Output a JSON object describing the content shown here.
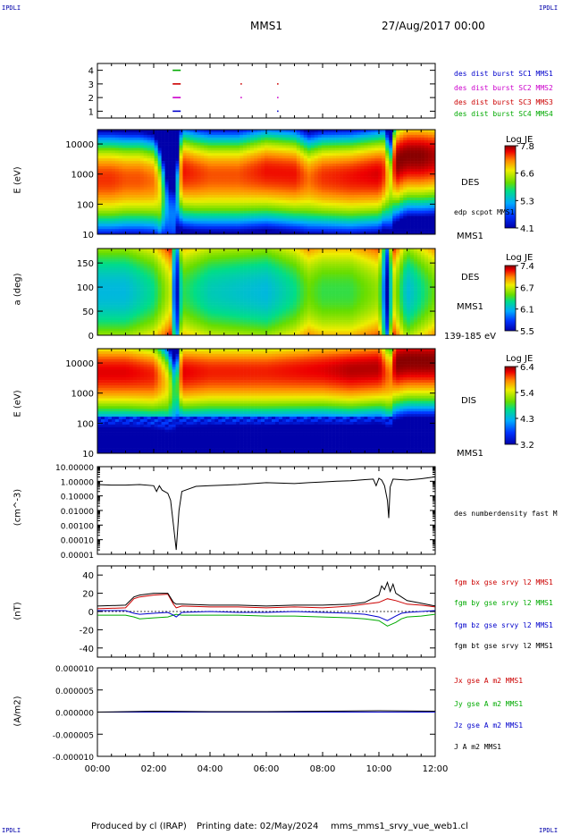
{
  "header": {
    "corner_label": "IPDLI",
    "spacecraft": "MMS1",
    "date_time": "27/Aug/2017 00:00"
  },
  "footer": {
    "produced_by": "Produced by cl (IRAP)",
    "printing_date": "Printing date: 02/May/2024",
    "script_name": "mms_mms1_srvy_vue_web1.cl"
  },
  "x_axis": {
    "tick_labels": [
      "00:00",
      "02:00",
      "04:00",
      "06:00",
      "08:00",
      "10:00",
      "12:00"
    ],
    "range_hours": [
      0,
      12
    ]
  },
  "panels": [
    {
      "id": "burst",
      "type": "timeline",
      "y_ticks": [
        "4",
        "3",
        "2",
        "1"
      ],
      "legend": [
        {
          "text": "des dist burst SC1 MMS1",
          "color": "#0000cc"
        },
        {
          "text": "des dist burst SC2 MMS2",
          "color": "#cc00cc"
        },
        {
          "text": "des dist burst SC3 MMS3",
          "color": "#cc0000"
        },
        {
          "text": "des dist burst SC4 MMS4",
          "color": "#00aa00"
        }
      ]
    },
    {
      "id": "des_energy",
      "type": "spectrogram",
      "ylabel": "E (eV)",
      "y_ticks": [
        "10000",
        "1000",
        "100",
        "10"
      ],
      "label_main": "DES",
      "label_sub": "edp scpot MMS1",
      "label_bottom": "MMS1",
      "colorbar": {
        "title": "Log JE",
        "ticks": [
          "7.8",
          "6.6",
          "5.3",
          "4.1"
        ]
      }
    },
    {
      "id": "des_pitch",
      "type": "spectrogram",
      "ylabel": "a (deg)",
      "y_ticks": [
        "150",
        "100",
        "50",
        "0"
      ],
      "label_main": "DES",
      "label_sub": "MMS1",
      "label_bottom": "139-185 eV",
      "colorbar": {
        "title": "Log JE",
        "ticks": [
          "7.4",
          "6.7",
          "6.1",
          "5.5"
        ]
      }
    },
    {
      "id": "dis_energy",
      "type": "spectrogram",
      "ylabel": "E (eV)",
      "y_ticks": [
        "10000",
        "1000",
        "100",
        "10"
      ],
      "label_main": "DIS",
      "label_bottom": "MMS1",
      "colorbar": {
        "title": "Log JE",
        "ticks": [
          "6.4",
          "5.4",
          "4.3",
          "3.2"
        ]
      }
    },
    {
      "id": "density",
      "type": "line",
      "ylabel": "(cm^-3)",
      "y_ticks": [
        "10.00000",
        "1.00000",
        "0.10000",
        "0.01000",
        "0.00100",
        "0.00010",
        "0.00001"
      ],
      "legend": [
        {
          "text": "des numberdensity fast M",
          "color": "#000000"
        }
      ]
    },
    {
      "id": "fgm",
      "type": "line",
      "ylabel": "(nT)",
      "y_ticks": [
        "40",
        "20",
        "0",
        "-20",
        "-40"
      ],
      "legend": [
        {
          "text": "fgm bx gse srvy l2 MMS1",
          "color": "#cc0000"
        },
        {
          "text": "fgm by gse srvy l2 MMS1",
          "color": "#00aa00"
        },
        {
          "text": "fgm bz gse srvy l2 MMS1",
          "color": "#0000cc"
        },
        {
          "text": "fgm bt gse srvy l2 MMS1",
          "color": "#000000"
        }
      ]
    },
    {
      "id": "current",
      "type": "line",
      "ylabel": "(A/m2)",
      "y_ticks": [
        "0.000010",
        "0.000005",
        "0.000000",
        "-0.000005",
        "-0.000010"
      ],
      "legend": [
        {
          "text": "Jx gse A m2 MMS1",
          "color": "#cc0000"
        },
        {
          "text": "Jy gse A m2 MMS1",
          "color": "#00aa00"
        },
        {
          "text": "Jz gse A m2 MMS1",
          "color": "#0000cc"
        },
        {
          "text": "J A m2 MMS1",
          "color": "#000000"
        }
      ]
    }
  ],
  "chart_data": [
    {
      "type": "scatter",
      "title": "des dist burst",
      "series": [
        {
          "name": "des dist burst SC4 MMS4",
          "x_hours": [
            2.8
          ],
          "y": 4
        },
        {
          "name": "des dist burst SC3 MMS3",
          "x_hours": [
            2.8,
            5.1,
            6.4
          ],
          "y": 3
        },
        {
          "name": "des dist burst SC2 MMS2",
          "x_hours": [
            2.8,
            5.1,
            6.4
          ],
          "y": 2
        },
        {
          "name": "des dist burst SC1 MMS1",
          "x_hours": [
            2.8,
            6.4
          ],
          "y": 1
        }
      ],
      "xlim": [
        0,
        12
      ],
      "ylim": [
        0.5,
        4.5
      ]
    },
    {
      "type": "heatmap",
      "title": "DES",
      "ylabel": "E (eV)",
      "yscale": "log",
      "ylim": [
        10,
        30000
      ],
      "colorbar": {
        "title": "Log JE",
        "range": [
          4.1,
          7.8
        ]
      },
      "x_hours": [
        0,
        0.5,
        1,
        1.5,
        2,
        2.2,
        2.5,
        2.8,
        3,
        3.5,
        4,
        5,
        6,
        7,
        7.5,
        8,
        9,
        10,
        10.2,
        10.4,
        10.6,
        11,
        11.5,
        12
      ],
      "peak_energy_eV": [
        700,
        700,
        700,
        700,
        600,
        300,
        50,
        40,
        1200,
        1000,
        900,
        900,
        1200,
        1000,
        700,
        800,
        800,
        1000,
        1200,
        400,
        2500,
        4000,
        4000,
        4000
      ],
      "peak_log_je": [
        7.4,
        7.4,
        7.3,
        7.3,
        7.2,
        6.8,
        5.0,
        5.0,
        7.5,
        7.4,
        7.3,
        7.3,
        7.5,
        7.5,
        7.2,
        7.4,
        7.5,
        7.6,
        7.4,
        6.5,
        7.8,
        7.8,
        7.8,
        7.7
      ]
    },
    {
      "type": "heatmap",
      "title": "DES 139-185 eV",
      "ylabel": "a (deg)",
      "ylim": [
        0,
        180
      ],
      "colorbar": {
        "title": "Log JE",
        "range": [
          5.5,
          7.4
        ]
      },
      "x_hours": [
        0,
        1,
        2,
        2.6,
        2.8,
        3,
        4,
        6,
        7,
        7.5,
        8,
        9,
        10,
        10.3,
        10.5,
        11,
        12
      ],
      "mean_log_je": [
        6.3,
        6.3,
        6.5,
        6.9,
        5.5,
        6.6,
        6.4,
        6.3,
        6.5,
        6.7,
        6.6,
        6.6,
        6.8,
        5.6,
        6.9,
        6.3,
        6.7
      ]
    },
    {
      "type": "heatmap",
      "title": "DIS",
      "ylabel": "E (eV)",
      "yscale": "log",
      "ylim": [
        10,
        30000
      ],
      "colorbar": {
        "title": "Log JE",
        "range": [
          3.2,
          6.4
        ]
      },
      "x_hours": [
        0,
        1,
        2,
        2.5,
        2.8,
        3,
        4,
        6,
        8,
        9,
        10,
        10.4,
        10.6,
        11,
        12
      ],
      "peak_energy_eV": [
        5000,
        5000,
        4000,
        2000,
        800,
        5000,
        5000,
        5000,
        6000,
        6000,
        7000,
        3000,
        10000,
        12000,
        12000
      ],
      "peak_log_je": [
        6.2,
        6.2,
        6.1,
        5.5,
        4.5,
        6.2,
        6.1,
        6.1,
        6.2,
        6.3,
        6.3,
        5.8,
        6.4,
        6.4,
        6.4
      ]
    },
    {
      "type": "line",
      "title": "des numberdensity fast",
      "ylabel": "(cm^-3)",
      "yscale": "log",
      "ylim": [
        1e-05,
        10
      ],
      "series": [
        {
          "name": "des numberdensity fast M",
          "x_hours": [
            0,
            0.5,
            1,
            1.5,
            2,
            2.1,
            2.2,
            2.3,
            2.5,
            2.6,
            2.7,
            2.8,
            2.9,
            3,
            3.5,
            4,
            5,
            6,
            6.5,
            7,
            7.5,
            8,
            8.5,
            9,
            9.5,
            9.8,
            9.9,
            10,
            10.1,
            10.2,
            10.3,
            10.35,
            10.4,
            10.5,
            11,
            11.5,
            12
          ],
          "y": [
            0.6,
            0.55,
            0.55,
            0.6,
            0.5,
            0.2,
            0.5,
            0.25,
            0.15,
            0.05,
            0.001,
            2e-05,
            0.01,
            0.2,
            0.45,
            0.5,
            0.6,
            0.8,
            0.75,
            0.7,
            0.8,
            0.9,
            1.0,
            1.1,
            1.3,
            1.4,
            0.5,
            1.6,
            1.2,
            0.5,
            0.05,
            0.003,
            0.4,
            1.4,
            1.2,
            1.5,
            2.0
          ]
        }
      ],
      "xlim": [
        0,
        12
      ]
    },
    {
      "type": "line",
      "title": "fgm gse srvy l2",
      "ylabel": "(nT)",
      "ylim": [
        -50,
        50
      ],
      "series": [
        {
          "name": "fgm bx gse srvy l2 MMS1",
          "x_hours": [
            0,
            1,
            1.3,
            1.5,
            2,
            2.5,
            2.7,
            2.8,
            3,
            4,
            5,
            6,
            7,
            8,
            9,
            9.5,
            10,
            10.3,
            10.6,
            10.8,
            11,
            11.5,
            12
          ],
          "y": [
            3,
            4,
            14,
            16,
            18,
            19,
            8,
            4,
            6,
            5,
            5,
            4,
            5,
            4,
            6,
            8,
            10,
            14,
            12,
            10,
            8,
            7,
            5
          ]
        },
        {
          "name": "fgm by gse srvy l2 MMS1",
          "x_hours": [
            0,
            1,
            1.3,
            1.5,
            2,
            2.5,
            2.7,
            2.8,
            3,
            4,
            5,
            6,
            7,
            8,
            9,
            9.5,
            10,
            10.3,
            10.6,
            10.8,
            11,
            11.5,
            12
          ],
          "y": [
            -4,
            -4,
            -6,
            -8,
            -7,
            -6,
            -4,
            -3,
            -4,
            -4,
            -4,
            -5,
            -5,
            -6,
            -7,
            -8,
            -10,
            -16,
            -12,
            -8,
            -6,
            -5,
            -3
          ]
        },
        {
          "name": "fgm bz gse srvy l2 MMS1",
          "x_hours": [
            0,
            1,
            1.3,
            1.5,
            2,
            2.5,
            2.7,
            2.8,
            3,
            4,
            5,
            6,
            7,
            8,
            9,
            9.5,
            10,
            10.3,
            10.6,
            10.8,
            11,
            11.5,
            12
          ],
          "y": [
            1,
            1,
            -2,
            -3,
            -2,
            -1,
            -4,
            -6,
            -1,
            0,
            -1,
            -1,
            0,
            -1,
            -2,
            -3,
            -6,
            -10,
            -5,
            -2,
            -1,
            0,
            1
          ]
        },
        {
          "name": "fgm bt gse srvy l2 MMS1",
          "x_hours": [
            0,
            1,
            1.3,
            1.5,
            2,
            2.5,
            2.7,
            2.8,
            3,
            4,
            5,
            6,
            7,
            8,
            9,
            9.5,
            10,
            10.1,
            10.2,
            10.3,
            10.4,
            10.5,
            10.6,
            10.8,
            11,
            11.5,
            12
          ],
          "y": [
            6,
            7,
            16,
            18,
            20,
            20,
            10,
            8,
            8,
            7,
            7,
            6,
            7,
            7,
            8,
            10,
            18,
            28,
            24,
            32,
            22,
            30,
            20,
            16,
            12,
            9,
            6
          ]
        }
      ],
      "xlim": [
        0,
        12
      ]
    },
    {
      "type": "line",
      "title": "J A m2",
      "ylabel": "(A/m2)",
      "ylim": [
        -1e-05,
        1e-05
      ],
      "series": [
        {
          "name": "Jx gse A m2 MMS1",
          "x_hours": [
            0,
            12
          ],
          "y": [
            0,
            0
          ]
        },
        {
          "name": "Jy gse A m2 MMS1",
          "x_hours": [
            0,
            12
          ],
          "y": [
            0,
            0
          ]
        },
        {
          "name": "Jz gse A m2 MMS1",
          "x_hours": [
            0,
            12
          ],
          "y": [
            0,
            0
          ]
        },
        {
          "name": "J A m2 MMS1",
          "x_hours": [
            0,
            2,
            4,
            6,
            8,
            10,
            12
          ],
          "y": [
            0,
            2e-07,
            1e-07,
            1e-07,
            2e-07,
            3e-07,
            2e-07
          ]
        }
      ],
      "xlim": [
        0,
        12
      ]
    }
  ]
}
